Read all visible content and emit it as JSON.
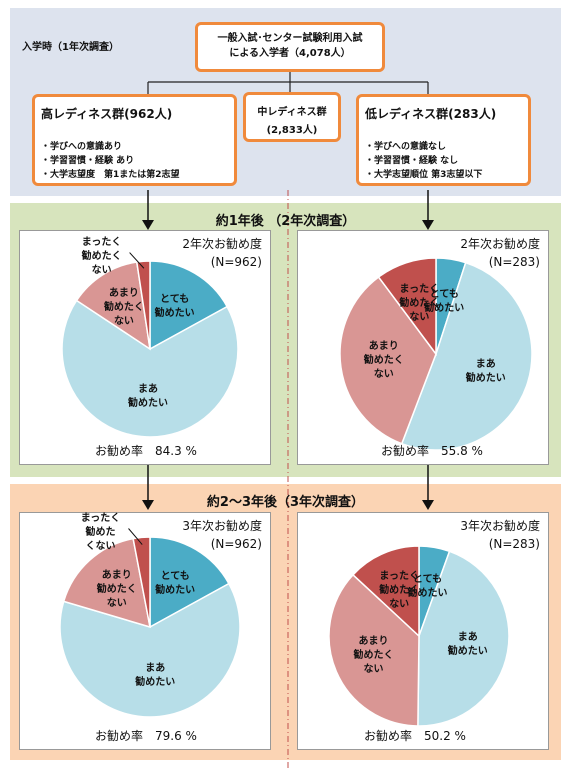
{
  "header": {
    "entry_label": "入学時（1年次調査）",
    "root_box": "一般入試･センター試験利用入試\nによる入学者（4,078人）"
  },
  "groups": {
    "high": {
      "title": "高レディネス群(962人)",
      "items": [
        "・学びへの意識あり",
        "・学習習慣・経験 あり",
        "・大学志望度　第1または第2志望"
      ]
    },
    "mid": {
      "title": "中レディネス群",
      "count": "(2,833人)"
    },
    "low": {
      "title": "低レディネス群(283人)",
      "items": [
        "・学びへの意識なし",
        "・学習習慣・経験 なし",
        "・大学志望順位 第3志望以下"
      ]
    }
  },
  "sections": {
    "year2_title": "約1年後 （2年次調査）",
    "year3_title": "約2～3年後（3年次調査）"
  },
  "colors": {
    "top_band": "#dde3ee",
    "mid_band": "#d7e4bd",
    "bottom_band": "#fbd4b4",
    "box_border": "#f08a3c",
    "divider": "#c0504d",
    "slice_very": "#4bacc6",
    "slice_somewhat": "#b7dee8",
    "slice_not_much": "#d99694",
    "slice_not_at_all": "#c0504d"
  },
  "chart_data": [
    {
      "type": "pie",
      "title": "2年次お勧め度",
      "n": "(N=962)",
      "rate_label": "お勧め率　84.3 %",
      "slices": [
        {
          "label": "とても\n勧めたい",
          "value": 17.0
        },
        {
          "label": "まあ\n勧めたい",
          "value": 67.3
        },
        {
          "label": "あまり\n勧めたく\nない",
          "value": 13.3
        },
        {
          "label": "まったく\n勧めたく\nない",
          "value": 2.4
        }
      ]
    },
    {
      "type": "pie",
      "title": "2年次お勧め度",
      "n": "(N=283)",
      "rate_label": "お勧め率　55.8 %",
      "slices": [
        {
          "label": "とても\n勧めたい",
          "value": 5.0
        },
        {
          "label": "まあ\n勧めたい",
          "value": 50.8
        },
        {
          "label": "あまり\n勧めたく\nない",
          "value": 34.0
        },
        {
          "label": "まったく\n勧めたく\nない",
          "value": 10.2
        }
      ]
    },
    {
      "type": "pie",
      "title": "3年次お勧め度",
      "n": "(N=962)",
      "rate_label": "お勧め率　79.6 %",
      "slices": [
        {
          "label": "とても\n勧めたい",
          "value": 17.0
        },
        {
          "label": "まあ\n勧めたい",
          "value": 62.6
        },
        {
          "label": "あまり\n勧めたく\nない",
          "value": 17.4
        },
        {
          "label": "まったく\n勧めた\nくない",
          "value": 3.0
        }
      ]
    },
    {
      "type": "pie",
      "title": "3年次お勧め度",
      "n": "(N=283)",
      "rate_label": "お勧め率　50.2 %",
      "slices": [
        {
          "label": "とても\n勧めたい",
          "value": 5.5
        },
        {
          "label": "まあ\n勧めたい",
          "value": 44.7
        },
        {
          "label": "あまり\n勧めたく\nない",
          "value": 36.7
        },
        {
          "label": "まったく\n勧めたく\nない",
          "value": 13.1
        }
      ]
    }
  ]
}
